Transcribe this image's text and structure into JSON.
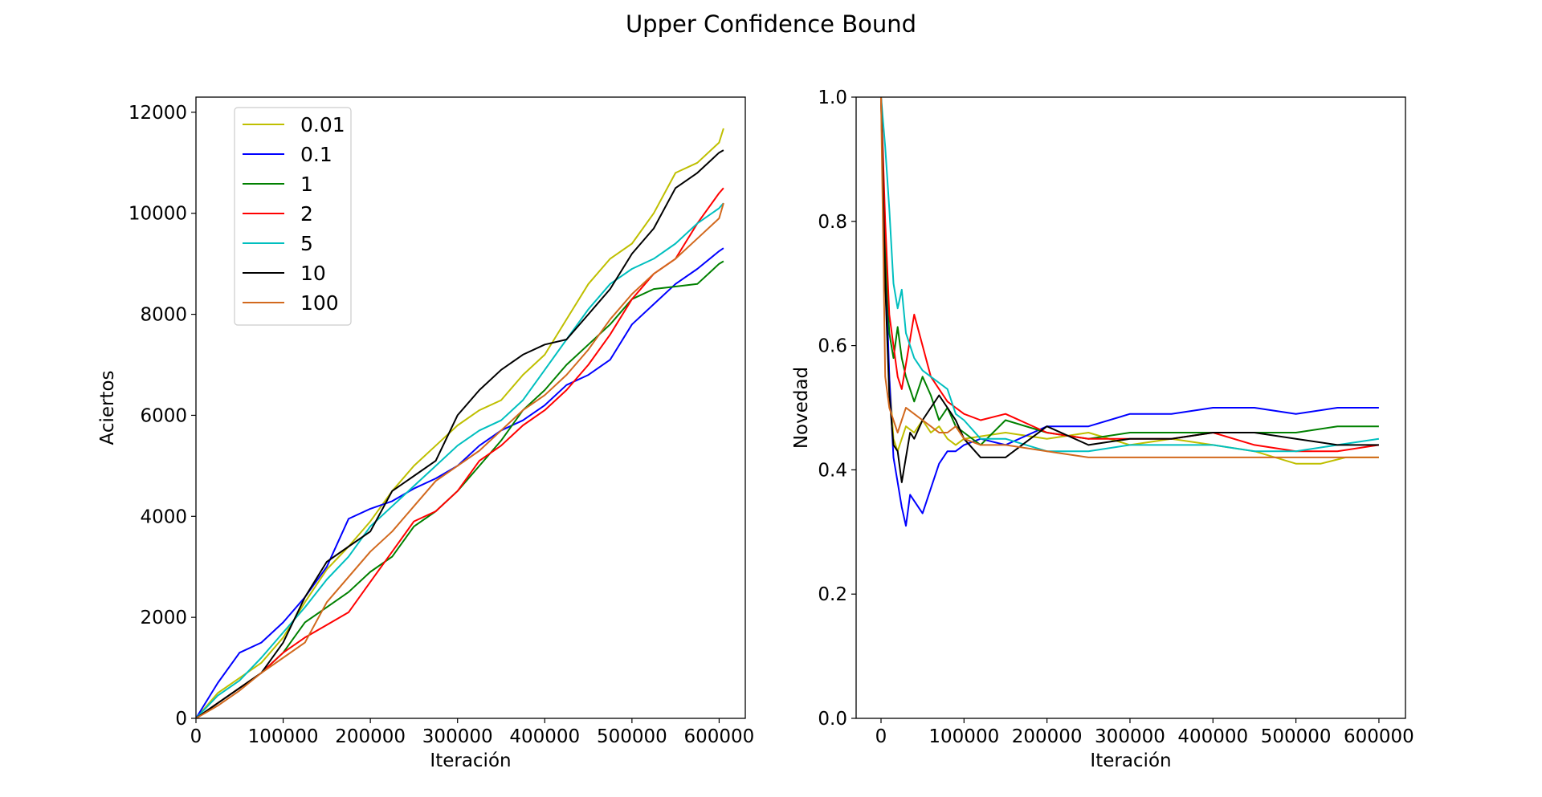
{
  "figure": {
    "title": "Upper Confidence Bound"
  },
  "chart_data": [
    {
      "type": "line",
      "xlabel": "Iteración",
      "ylabel": "Aciertos",
      "xlim": [
        0,
        630000
      ],
      "ylim": [
        0,
        12300
      ],
      "xticks": [
        0,
        100000,
        200000,
        300000,
        400000,
        500000,
        600000
      ],
      "yticks": [
        0,
        2000,
        4000,
        6000,
        8000,
        10000,
        12000
      ],
      "legend": "upper-left",
      "series": [
        {
          "name": "0.01",
          "color": "#bfbf00",
          "x": [
            0,
            25000,
            50000,
            75000,
            100000,
            125000,
            150000,
            175000,
            200000,
            225000,
            250000,
            275000,
            300000,
            325000,
            350000,
            375000,
            400000,
            425000,
            450000,
            475000,
            500000,
            525000,
            550000,
            575000,
            600000,
            605000
          ],
          "y": [
            0,
            500,
            800,
            1100,
            1600,
            2300,
            2950,
            3400,
            3900,
            4500,
            5000,
            5400,
            5800,
            6100,
            6300,
            6800,
            7200,
            7900,
            8600,
            9100,
            9400,
            10000,
            10800,
            11000,
            11400,
            11680
          ]
        },
        {
          "name": "0.1",
          "color": "#0000ff",
          "x": [
            0,
            25000,
            50000,
            75000,
            100000,
            125000,
            150000,
            175000,
            200000,
            225000,
            250000,
            275000,
            300000,
            325000,
            350000,
            375000,
            400000,
            425000,
            450000,
            475000,
            500000,
            525000,
            550000,
            575000,
            600000,
            605000
          ],
          "y": [
            0,
            700,
            1300,
            1500,
            1900,
            2400,
            3000,
            3950,
            4150,
            4300,
            4550,
            4750,
            5000,
            5400,
            5700,
            5900,
            6200,
            6600,
            6800,
            7100,
            7800,
            8200,
            8600,
            8900,
            9250,
            9310
          ]
        },
        {
          "name": "1",
          "color": "#008000",
          "x": [
            0,
            25000,
            50000,
            75000,
            100000,
            125000,
            150000,
            175000,
            200000,
            225000,
            250000,
            275000,
            300000,
            325000,
            350000,
            375000,
            400000,
            425000,
            450000,
            475000,
            500000,
            525000,
            550000,
            575000,
            600000,
            605000
          ],
          "y": [
            0,
            300,
            600,
            900,
            1300,
            1900,
            2200,
            2500,
            2900,
            3200,
            3800,
            4100,
            4500,
            5000,
            5500,
            6100,
            6500,
            7000,
            7400,
            7800,
            8300,
            8500,
            8550,
            8600,
            9000,
            9050
          ]
        },
        {
          "name": "2",
          "color": "#ff0000",
          "x": [
            0,
            25000,
            50000,
            75000,
            100000,
            125000,
            150000,
            175000,
            200000,
            225000,
            250000,
            275000,
            300000,
            325000,
            350000,
            375000,
            400000,
            425000,
            450000,
            475000,
            500000,
            525000,
            550000,
            575000,
            600000,
            605000
          ],
          "y": [
            0,
            300,
            600,
            900,
            1300,
            1600,
            1850,
            2100,
            2700,
            3300,
            3900,
            4100,
            4500,
            5100,
            5400,
            5800,
            6100,
            6500,
            7000,
            7600,
            8300,
            8800,
            9100,
            9800,
            10400,
            10500
          ]
        },
        {
          "name": "5",
          "color": "#00bfbf",
          "x": [
            0,
            25000,
            50000,
            75000,
            100000,
            125000,
            150000,
            175000,
            200000,
            225000,
            250000,
            275000,
            300000,
            325000,
            350000,
            375000,
            400000,
            425000,
            450000,
            475000,
            500000,
            525000,
            550000,
            575000,
            600000,
            605000
          ],
          "y": [
            0,
            450,
            750,
            1200,
            1700,
            2200,
            2750,
            3200,
            3800,
            4200,
            4600,
            5000,
            5400,
            5700,
            5900,
            6300,
            6900,
            7500,
            8100,
            8600,
            8900,
            9100,
            9400,
            9800,
            10100,
            10200
          ]
        },
        {
          "name": "10",
          "color": "#000000",
          "x": [
            0,
            25000,
            50000,
            75000,
            100000,
            125000,
            150000,
            175000,
            200000,
            225000,
            250000,
            275000,
            300000,
            325000,
            350000,
            375000,
            400000,
            425000,
            450000,
            475000,
            500000,
            525000,
            550000,
            575000,
            600000,
            605000
          ],
          "y": [
            0,
            300,
            600,
            900,
            1500,
            2400,
            3100,
            3400,
            3700,
            4500,
            4800,
            5100,
            6000,
            6500,
            6900,
            7200,
            7400,
            7500,
            8000,
            8500,
            9200,
            9700,
            10500,
            10800,
            11200,
            11250
          ]
        },
        {
          "name": "100",
          "color": "#d2691e",
          "x": [
            0,
            25000,
            50000,
            75000,
            100000,
            125000,
            150000,
            175000,
            200000,
            225000,
            250000,
            275000,
            300000,
            325000,
            350000,
            375000,
            400000,
            425000,
            450000,
            475000,
            500000,
            525000,
            550000,
            575000,
            600000,
            605000
          ],
          "y": [
            0,
            250,
            550,
            900,
            1200,
            1500,
            2300,
            2800,
            3300,
            3700,
            4200,
            4700,
            5000,
            5300,
            5700,
            6100,
            6400,
            6800,
            7300,
            7900,
            8400,
            8800,
            9100,
            9500,
            9900,
            10200
          ]
        }
      ]
    },
    {
      "type": "line",
      "xlabel": "Iteración",
      "ylabel": "Novedad",
      "xlim": [
        -30000,
        632000
      ],
      "ylim": [
        0.0,
        1.0
      ],
      "xticks": [
        0,
        100000,
        200000,
        300000,
        400000,
        500000,
        600000
      ],
      "yticks": [
        0.0,
        0.2,
        0.4,
        0.6,
        0.8,
        1.0
      ],
      "series": [
        {
          "name": "0.01",
          "color": "#bfbf00",
          "x": [
            0,
            5000,
            10000,
            15000,
            20000,
            30000,
            40000,
            50000,
            60000,
            70000,
            80000,
            90000,
            100000,
            150000,
            200000,
            250000,
            300000,
            350000,
            400000,
            450000,
            500000,
            530000,
            560000,
            600000
          ],
          "y": [
            1.0,
            0.7,
            0.55,
            0.45,
            0.43,
            0.47,
            0.46,
            0.48,
            0.46,
            0.47,
            0.45,
            0.44,
            0.45,
            0.46,
            0.45,
            0.46,
            0.44,
            0.45,
            0.44,
            0.43,
            0.41,
            0.41,
            0.42,
            0.42
          ]
        },
        {
          "name": "0.1",
          "color": "#0000ff",
          "x": [
            0,
            5000,
            10000,
            15000,
            20000,
            25000,
            30000,
            35000,
            40000,
            50000,
            60000,
            70000,
            80000,
            90000,
            100000,
            120000,
            150000,
            200000,
            250000,
            300000,
            350000,
            400000,
            450000,
            500000,
            550000,
            600000
          ],
          "y": [
            1.0,
            0.75,
            0.55,
            0.42,
            0.38,
            0.34,
            0.31,
            0.36,
            0.35,
            0.33,
            0.37,
            0.41,
            0.43,
            0.43,
            0.44,
            0.45,
            0.44,
            0.47,
            0.47,
            0.49,
            0.49,
            0.5,
            0.5,
            0.49,
            0.5,
            0.5
          ]
        },
        {
          "name": "1",
          "color": "#008000",
          "x": [
            0,
            5000,
            10000,
            15000,
            20000,
            25000,
            30000,
            40000,
            50000,
            60000,
            70000,
            80000,
            90000,
            100000,
            120000,
            150000,
            200000,
            250000,
            300000,
            350000,
            400000,
            450000,
            500000,
            550000,
            600000
          ],
          "y": [
            1.0,
            0.75,
            0.62,
            0.58,
            0.63,
            0.58,
            0.55,
            0.51,
            0.55,
            0.52,
            0.48,
            0.5,
            0.47,
            0.46,
            0.44,
            0.48,
            0.46,
            0.45,
            0.46,
            0.46,
            0.46,
            0.46,
            0.46,
            0.47,
            0.47
          ]
        },
        {
          "name": "2",
          "color": "#ff0000",
          "x": [
            0,
            5000,
            10000,
            15000,
            20000,
            25000,
            30000,
            40000,
            50000,
            60000,
            70000,
            80000,
            90000,
            100000,
            120000,
            150000,
            200000,
            250000,
            300000,
            350000,
            400000,
            450000,
            500000,
            550000,
            600000
          ],
          "y": [
            1.0,
            0.8,
            0.65,
            0.6,
            0.55,
            0.53,
            0.57,
            0.65,
            0.6,
            0.55,
            0.53,
            0.51,
            0.5,
            0.49,
            0.48,
            0.49,
            0.46,
            0.45,
            0.45,
            0.45,
            0.46,
            0.44,
            0.43,
            0.43,
            0.44
          ]
        },
        {
          "name": "5",
          "color": "#00bfbf",
          "x": [
            0,
            5000,
            10000,
            15000,
            20000,
            25000,
            30000,
            40000,
            50000,
            60000,
            70000,
            80000,
            90000,
            100000,
            120000,
            150000,
            200000,
            250000,
            300000,
            350000,
            400000,
            450000,
            500000,
            550000,
            600000
          ],
          "y": [
            1.0,
            0.92,
            0.82,
            0.7,
            0.66,
            0.69,
            0.62,
            0.58,
            0.56,
            0.55,
            0.54,
            0.53,
            0.49,
            0.48,
            0.45,
            0.45,
            0.43,
            0.43,
            0.44,
            0.44,
            0.44,
            0.43,
            0.43,
            0.44,
            0.45
          ]
        },
        {
          "name": "10",
          "color": "#000000",
          "x": [
            0,
            5000,
            10000,
            15000,
            20000,
            25000,
            30000,
            35000,
            40000,
            50000,
            60000,
            70000,
            80000,
            90000,
            100000,
            120000,
            150000,
            200000,
            250000,
            300000,
            350000,
            400000,
            450000,
            500000,
            550000,
            600000
          ],
          "y": [
            1.0,
            0.7,
            0.52,
            0.44,
            0.43,
            0.38,
            0.42,
            0.46,
            0.45,
            0.48,
            0.5,
            0.52,
            0.5,
            0.48,
            0.45,
            0.42,
            0.42,
            0.47,
            0.44,
            0.45,
            0.45,
            0.46,
            0.46,
            0.45,
            0.44,
            0.44
          ]
        },
        {
          "name": "100",
          "color": "#d2691e",
          "x": [
            0,
            5000,
            10000,
            15000,
            20000,
            25000,
            30000,
            40000,
            50000,
            60000,
            70000,
            80000,
            90000,
            100000,
            120000,
            150000,
            200000,
            250000,
            300000,
            350000,
            400000,
            450000,
            500000,
            550000,
            600000
          ],
          "y": [
            1.0,
            0.55,
            0.5,
            0.48,
            0.46,
            0.48,
            0.5,
            0.49,
            0.48,
            0.47,
            0.46,
            0.46,
            0.47,
            0.45,
            0.44,
            0.44,
            0.43,
            0.42,
            0.42,
            0.42,
            0.42,
            0.42,
            0.42,
            0.42,
            0.42
          ]
        }
      ]
    }
  ]
}
